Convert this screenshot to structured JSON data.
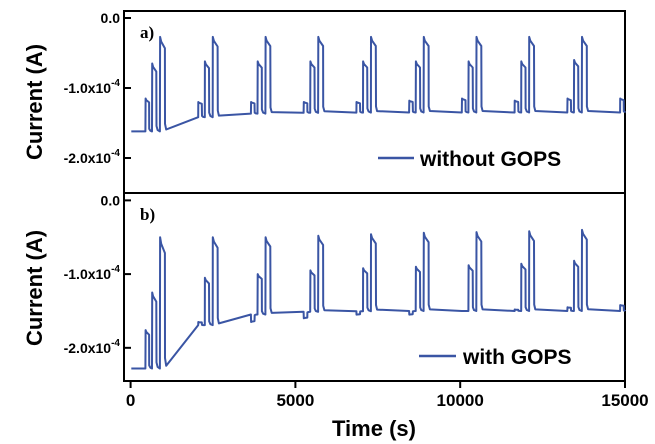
{
  "chart_data": [
    {
      "type": "line",
      "panel_label": "a)",
      "ylabel": "Current (A)",
      "ylim": [
        -0.00025,
        1e-05
      ],
      "yticks": [
        0.0,
        -0.0001,
        -0.0002
      ],
      "ytick_labels": [
        {
          "mantissa": "0.0",
          "exponent": ""
        },
        {
          "mantissa": "-1.0x10",
          "exponent": "-4"
        },
        {
          "mantissa": "-2.0x10",
          "exponent": "-4"
        }
      ],
      "xlim": [
        -200,
        15000
      ],
      "legend": "bottom-right",
      "series": [
        {
          "name": "without GOPS",
          "color": "#3a55a4",
          "baseline_start": -0.000162,
          "baseline_end": -0.000135,
          "step_start": 450,
          "step_period": 1600,
          "peaks": [
            [
              -0.000115,
              -6.5e-05,
              -2.7e-05
            ],
            [
              -0.00012,
              -6.2e-05,
              -2.7e-05
            ],
            [
              -0.00012,
              -6.2e-05,
              -2.7e-05
            ],
            [
              -0.00012,
              -6.2e-05,
              -2.7e-05
            ],
            [
              -0.00012,
              -6.2e-05,
              -2.7e-05
            ],
            [
              -0.000118,
              -6.2e-05,
              -2.7e-05
            ],
            [
              -0.000115,
              -6.2e-05,
              -2.7e-05
            ],
            [
              -0.000118,
              -6.2e-05,
              -2.7e-05
            ],
            [
              -0.000115,
              -6e-05,
              -2.7e-05
            ],
            [
              -0.000115,
              -6e-05,
              -2.7e-05
            ]
          ]
        }
      ]
    },
    {
      "type": "line",
      "panel_label": "b)",
      "xlabel": "Time (s)",
      "ylabel": "Current (A)",
      "ylim": [
        -0.000245,
        1e-05
      ],
      "yticks": [
        0.0,
        -0.0001,
        -0.0002
      ],
      "ytick_labels": [
        {
          "mantissa": "0.0",
          "exponent": ""
        },
        {
          "mantissa": "-1.0x10",
          "exponent": "-4"
        },
        {
          "mantissa": "-2.0x10",
          "exponent": "-4"
        }
      ],
      "xlim": [
        -200,
        15000
      ],
      "xticks": [
        0,
        5000,
        10000,
        15000
      ],
      "xtick_labels": [
        "0",
        "5000",
        "10000",
        "15000"
      ],
      "legend": "bottom-right",
      "series": [
        {
          "name": "with GOPS",
          "color": "#3a55a4",
          "baseline_start": -0.000228,
          "baseline_end": -0.00015,
          "step_start": 450,
          "step_period": 1600,
          "peaks": [
            [
              -0.000176,
              -0.000125,
              -5e-05
            ],
            [
              -0.000165,
              -0.000105,
              -5e-05
            ],
            [
              -0.000165,
              -0.0001,
              -5e-05
            ],
            [
              -0.00016,
              -9.5e-05,
              -4.8e-05
            ],
            [
              -0.000155,
              -9.2e-05,
              -4.6e-05
            ],
            [
              -0.000155,
              -9e-05,
              -4.4e-05
            ],
            [
              -0.00015,
              -8.8e-05,
              -4.3e-05
            ],
            [
              -0.000148,
              -8.6e-05,
              -4.2e-05
            ],
            [
              -0.000145,
              -8.2e-05,
              -4e-05
            ],
            [
              -0.000142,
              -8e-05,
              -3.8e-05
            ]
          ]
        }
      ]
    }
  ]
}
